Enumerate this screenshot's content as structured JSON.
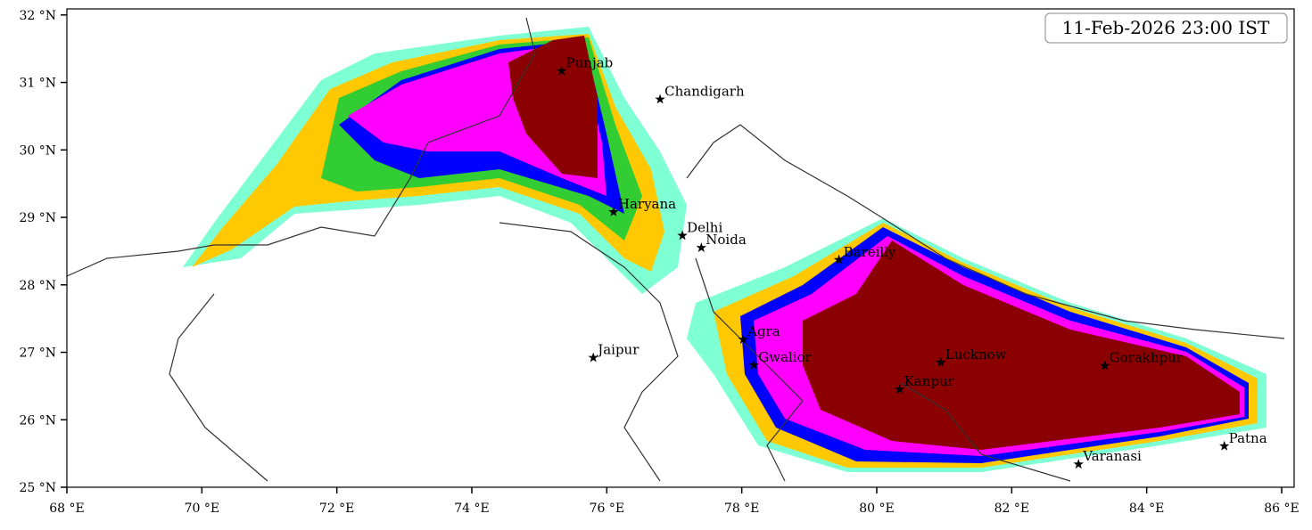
{
  "title": "11-Feb-2026 23:00 IST",
  "xaxis": {
    "lim": [
      68,
      86.185
    ],
    "ticks": [
      {
        "value": 68,
        "label": "68 °E"
      },
      {
        "value": 70,
        "label": "70 °E"
      },
      {
        "value": 72,
        "label": "72 °E"
      },
      {
        "value": 74,
        "label": "74 °E"
      },
      {
        "value": 76,
        "label": "76 °E"
      },
      {
        "value": 78,
        "label": "78 °E"
      },
      {
        "value": 80,
        "label": "80 °E"
      },
      {
        "value": 82,
        "label": "82 °E"
      },
      {
        "value": 84,
        "label": "84 °E"
      },
      {
        "value": 86,
        "label": "86 °E"
      }
    ]
  },
  "yaxis": {
    "lim": [
      25,
      32.09
    ],
    "ticks": [
      {
        "value": 25,
        "label": "25 °N"
      },
      {
        "value": 26,
        "label": "26 °N"
      },
      {
        "value": 27,
        "label": "27 °N"
      },
      {
        "value": 28,
        "label": "28 °N"
      },
      {
        "value": 29,
        "label": "29 °N"
      },
      {
        "value": 30,
        "label": "30 °N"
      },
      {
        "value": 31,
        "label": "31 °N"
      },
      {
        "value": 32,
        "label": "32 °N"
      }
    ]
  },
  "cities": [
    {
      "name": "Punjab",
      "lon": 75.33,
      "lat": 31.17
    },
    {
      "name": "Chandigarh",
      "lon": 76.79,
      "lat": 30.75
    },
    {
      "name": "Haryana",
      "lon": 76.1,
      "lat": 29.08
    },
    {
      "name": "Delhi",
      "lon": 77.12,
      "lat": 28.73
    },
    {
      "name": "Noida",
      "lon": 77.4,
      "lat": 28.55
    },
    {
      "name": "Bareilly",
      "lon": 79.44,
      "lat": 28.37
    },
    {
      "name": "Jaipur",
      "lon": 75.8,
      "lat": 26.92
    },
    {
      "name": "Agra",
      "lon": 78.02,
      "lat": 27.19
    },
    {
      "name": "Gwalior",
      "lon": 78.18,
      "lat": 26.81
    },
    {
      "name": "Lucknow",
      "lon": 80.95,
      "lat": 26.85
    },
    {
      "name": "Kanpur",
      "lon": 80.34,
      "lat": 26.45
    },
    {
      "name": "Gorakhpur",
      "lon": 83.38,
      "lat": 26.8
    },
    {
      "name": "Varanasi",
      "lon": 82.99,
      "lat": 25.34
    },
    {
      "name": "Patna",
      "lon": 85.15,
      "lat": 25.61
    }
  ]
}
